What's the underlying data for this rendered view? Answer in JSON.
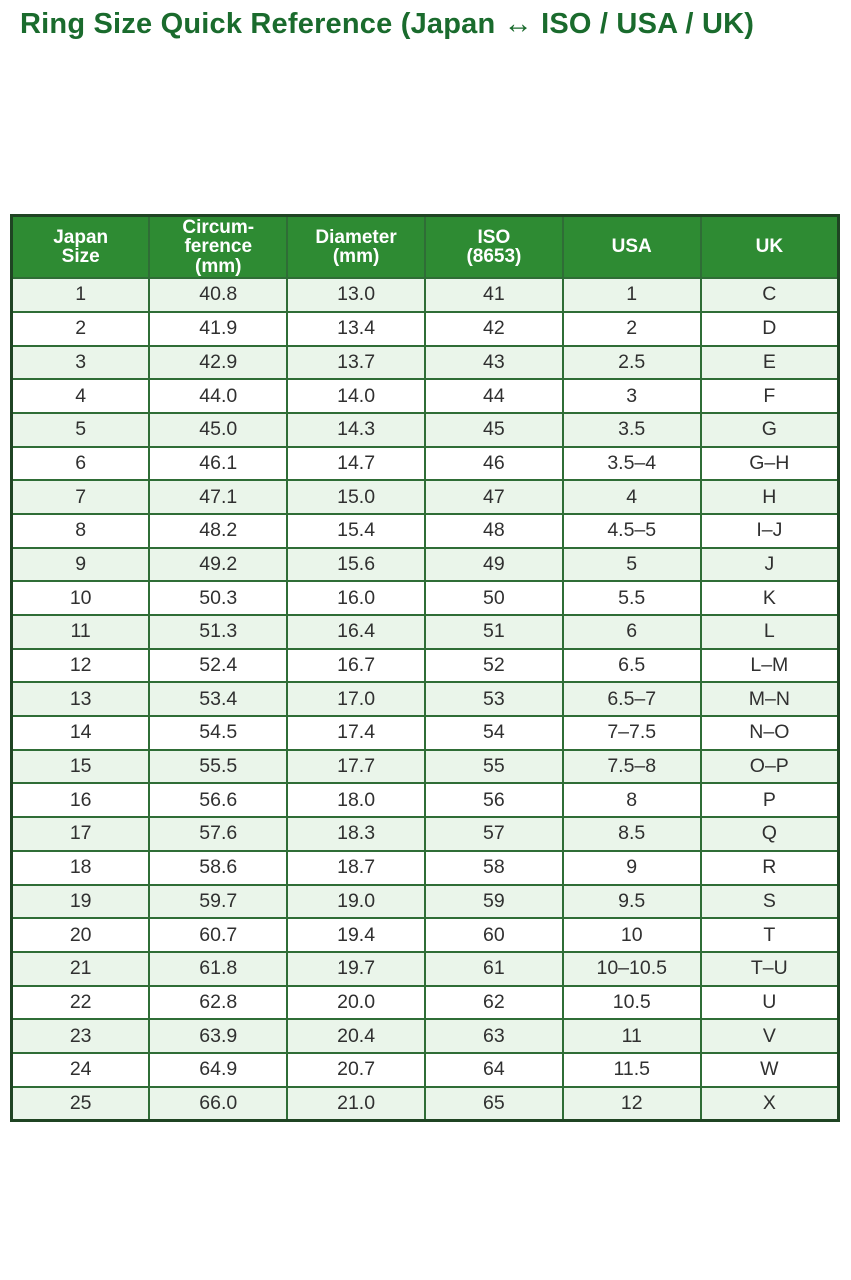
{
  "title": "Ring Size Quick Reference (Japan ↔ ISO / USA / UK)",
  "colors": {
    "title_text": "#1a6b2d",
    "header_bg": "#2e8b33",
    "header_text": "#ffffff",
    "row_alt_bg": "#eaf5ea",
    "row_bg": "#ffffff",
    "grid_border": "#2f6d36",
    "outer_border": "#1f4423",
    "cell_text": "#303030"
  },
  "table": {
    "columns": [
      "Japan\nSize",
      "Circum-\nference\n(mm)",
      "Diameter\n(mm)",
      "ISO\n(8653)",
      "USA",
      "UK"
    ],
    "rows": [
      [
        "1",
        "40.8",
        "13.0",
        "41",
        "1",
        "C"
      ],
      [
        "2",
        "41.9",
        "13.4",
        "42",
        "2",
        "D"
      ],
      [
        "3",
        "42.9",
        "13.7",
        "43",
        "2.5",
        "E"
      ],
      [
        "4",
        "44.0",
        "14.0",
        "44",
        "3",
        "F"
      ],
      [
        "5",
        "45.0",
        "14.3",
        "45",
        "3.5",
        "G"
      ],
      [
        "6",
        "46.1",
        "14.7",
        "46",
        "3.5–4",
        "G–H"
      ],
      [
        "7",
        "47.1",
        "15.0",
        "47",
        "4",
        "H"
      ],
      [
        "8",
        "48.2",
        "15.4",
        "48",
        "4.5–5",
        "I–J"
      ],
      [
        "9",
        "49.2",
        "15.6",
        "49",
        "5",
        "J"
      ],
      [
        "10",
        "50.3",
        "16.0",
        "50",
        "5.5",
        "K"
      ],
      [
        "11",
        "51.3",
        "16.4",
        "51",
        "6",
        "L"
      ],
      [
        "12",
        "52.4",
        "16.7",
        "52",
        "6.5",
        "L–M"
      ],
      [
        "13",
        "53.4",
        "17.0",
        "53",
        "6.5–7",
        "M–N"
      ],
      [
        "14",
        "54.5",
        "17.4",
        "54",
        "7–7.5",
        "N–O"
      ],
      [
        "15",
        "55.5",
        "17.7",
        "55",
        "7.5–8",
        "O–P"
      ],
      [
        "16",
        "56.6",
        "18.0",
        "56",
        "8",
        "P"
      ],
      [
        "17",
        "57.6",
        "18.3",
        "57",
        "8.5",
        "Q"
      ],
      [
        "18",
        "58.6",
        "18.7",
        "58",
        "9",
        "R"
      ],
      [
        "19",
        "59.7",
        "19.0",
        "59",
        "9.5",
        "S"
      ],
      [
        "20",
        "60.7",
        "19.4",
        "60",
        "10",
        "T"
      ],
      [
        "21",
        "61.8",
        "19.7",
        "61",
        "10–10.5",
        "T–U"
      ],
      [
        "22",
        "62.8",
        "20.0",
        "62",
        "10.5",
        "U"
      ],
      [
        "23",
        "63.9",
        "20.4",
        "63",
        "11",
        "V"
      ],
      [
        "24",
        "64.9",
        "20.7",
        "64",
        "11.5",
        "W"
      ],
      [
        "25",
        "66.0",
        "21.0",
        "65",
        "12",
        "X"
      ]
    ]
  }
}
